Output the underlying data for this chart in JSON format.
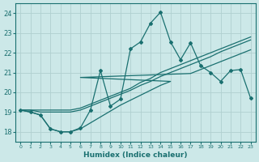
{
  "xlabel": "Humidex (Indice chaleur)",
  "bg_color": "#cce8e8",
  "grid_color_major": "#b0d0d0",
  "grid_color_minor": "#c8e0e0",
  "line_color": "#1a7070",
  "xlim": [
    -0.5,
    23.5
  ],
  "ylim": [
    17.5,
    24.5
  ],
  "yticks": [
    18,
    19,
    20,
    21,
    22,
    23,
    24
  ],
  "xticks": [
    0,
    1,
    2,
    3,
    4,
    5,
    6,
    7,
    8,
    9,
    10,
    11,
    12,
    13,
    14,
    15,
    16,
    17,
    18,
    19,
    20,
    21,
    22,
    23
  ],
  "line_main": {
    "x": [
      0,
      1,
      2,
      3,
      4,
      5,
      6,
      7,
      8,
      9,
      10,
      11,
      12,
      13,
      14,
      15,
      16,
      17,
      18,
      19,
      20,
      21,
      22,
      23
    ],
    "y": [
      19.1,
      19.0,
      18.85,
      18.15,
      18.0,
      18.0,
      18.2,
      19.1,
      21.1,
      19.3,
      19.65,
      22.2,
      22.55,
      23.5,
      24.05,
      22.55,
      21.65,
      22.5,
      21.35,
      21.0,
      20.55,
      21.1,
      21.15,
      19.7
    ],
    "marker": "D"
  },
  "line_upper": {
    "x": [
      0,
      1,
      2,
      3,
      4,
      5,
      6,
      7,
      8,
      9,
      10,
      11,
      12,
      13,
      14,
      15,
      16,
      17,
      18,
      19,
      20,
      21,
      22,
      23
    ],
    "y": [
      19.1,
      19.1,
      19.1,
      19.1,
      19.1,
      19.1,
      19.2,
      19.4,
      19.6,
      19.8,
      20.0,
      20.2,
      20.5,
      20.7,
      21.0,
      21.2,
      21.4,
      21.6,
      21.8,
      22.0,
      22.2,
      22.4,
      22.6,
      22.8
    ],
    "marker": null
  },
  "line_mid": {
    "x": [
      0,
      1,
      2,
      3,
      4,
      5,
      6,
      7,
      8,
      9,
      10,
      11,
      12,
      13,
      14,
      15,
      16,
      17,
      18,
      19,
      20,
      21,
      22,
      23
    ],
    "y": [
      19.1,
      19.1,
      19.0,
      19.0,
      19.0,
      19.0,
      19.1,
      19.3,
      19.5,
      19.7,
      19.9,
      20.1,
      20.35,
      20.55,
      20.8,
      21.0,
      21.2,
      21.4,
      21.6,
      21.8,
      22.05,
      22.25,
      22.45,
      22.65
    ],
    "marker": null
  },
  "line_lower": {
    "x": [
      0,
      1,
      2,
      3,
      4,
      5,
      6,
      7,
      8,
      9,
      10,
      11,
      12,
      13,
      14,
      15,
      6,
      17,
      18,
      19,
      20,
      21,
      22,
      23
    ],
    "y": [
      19.1,
      19.0,
      18.85,
      18.15,
      18.0,
      18.0,
      18.15,
      18.45,
      18.75,
      19.05,
      19.35,
      19.6,
      19.85,
      20.1,
      20.35,
      20.55,
      20.75,
      20.95,
      21.15,
      21.35,
      21.55,
      21.75,
      21.95,
      22.15
    ],
    "marker": null
  }
}
